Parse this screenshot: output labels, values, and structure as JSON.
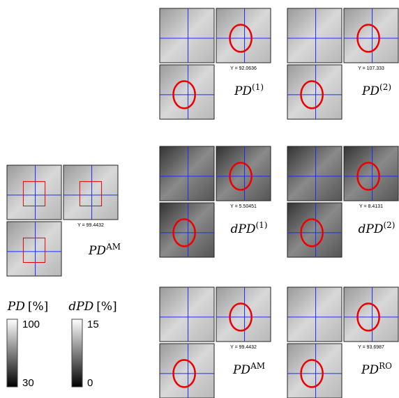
{
  "panels": [
    {
      "y_label": "Y = 92.0636",
      "caption": {
        "base": "PD",
        "sup": "(1)"
      }
    },
    {
      "y_label": "Y = 107.333",
      "caption": {
        "base": "PD",
        "sup": "(2)"
      }
    },
    {
      "y_label": "Y = 5.50451",
      "caption": {
        "base": "dPD",
        "sup": "(1)"
      }
    },
    {
      "y_label": "Y = 8.4131",
      "caption": {
        "base": "dPD",
        "sup": "(2)"
      }
    },
    {
      "y_label": "Y = 99.4432",
      "caption": {
        "base": "PD",
        "sup": "AM"
      }
    },
    {
      "y_label": "Y = 93.6987",
      "caption": {
        "base": "PD",
        "sup": "RO"
      }
    }
  ],
  "reference": {
    "y_label": "Y = 99.4432",
    "caption": {
      "base": "PD",
      "sup": "AM"
    }
  },
  "colorbars": [
    {
      "label": {
        "base": "PD",
        "unit": "[%]"
      },
      "max": 100,
      "min": 30
    },
    {
      "label": {
        "base": "dPD",
        "unit": "[%]"
      },
      "max": 15,
      "min": 0
    }
  ]
}
